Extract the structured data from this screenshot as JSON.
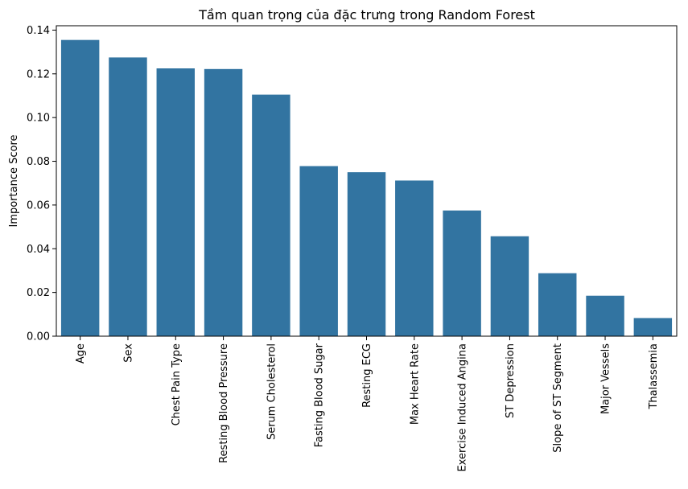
{
  "chart_data": {
    "type": "bar",
    "title": "Tầm quan trọng của đặc trưng trong Random Forest",
    "xlabel": "",
    "ylabel": "Importance Score",
    "categories": [
      "Age",
      "Sex",
      "Chest Pain Type",
      "Resting Blood Pressure",
      "Serum Cholesterol",
      "Fasting Blood Sugar",
      "Resting ECG",
      "Max Heart Rate",
      "Exercise Induced Angina",
      "ST Depression",
      "Slope of ST Segment",
      "Major Vessels",
      "Thalassemia"
    ],
    "values": [
      0.1355,
      0.1275,
      0.1225,
      0.1222,
      0.1105,
      0.0778,
      0.075,
      0.0712,
      0.0575,
      0.0457,
      0.0288,
      0.0185,
      0.0083
    ],
    "ylim": [
      0,
      0.142
    ],
    "yticks": [
      "0.00",
      "0.02",
      "0.04",
      "0.06",
      "0.08",
      "0.10",
      "0.12",
      "0.14"
    ],
    "bar_color": "#3274a1",
    "grid": false,
    "legend": "none"
  }
}
